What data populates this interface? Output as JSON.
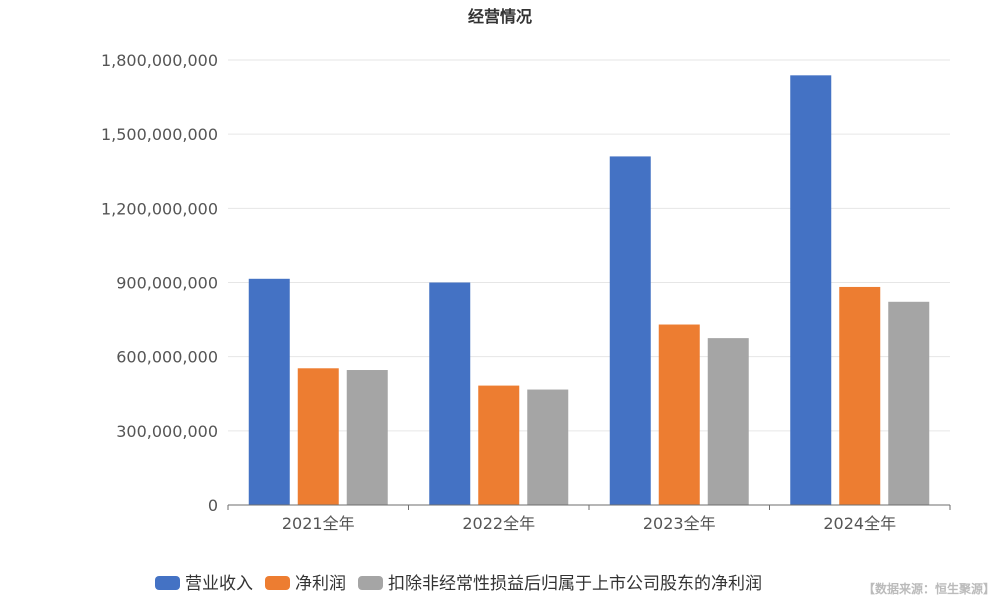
{
  "chart_data": {
    "type": "bar",
    "title": "经营情况",
    "categories": [
      "2021全年",
      "2022全年",
      "2023全年",
      "2024全年"
    ],
    "series": [
      {
        "name": "营业收入",
        "color": "#4472C4",
        "values": [
          915000000,
          900000000,
          1410000000,
          1738000000
        ]
      },
      {
        "name": "净利润",
        "color": "#ED7D31",
        "values": [
          553000000,
          483000000,
          730000000,
          882000000
        ]
      },
      {
        "name": "扣除非经常性损益后归属于上市公司股东的净利润",
        "color": "#A5A5A5",
        "values": [
          546000000,
          467000000,
          675000000,
          822000000
        ]
      }
    ],
    "ylim": [
      0,
      1800000000
    ],
    "yticks": [
      0,
      300000000,
      600000000,
      900000000,
      1200000000,
      1500000000,
      1800000000
    ],
    "ytick_labels": [
      "0",
      "300,000,000",
      "600,000,000",
      "900,000,000",
      "1,200,000,000",
      "1,500,000,000",
      "1,800,000,000"
    ],
    "grid": true,
    "legend_position": "bottom"
  },
  "source_note": "【数据来源：恒生聚源】"
}
